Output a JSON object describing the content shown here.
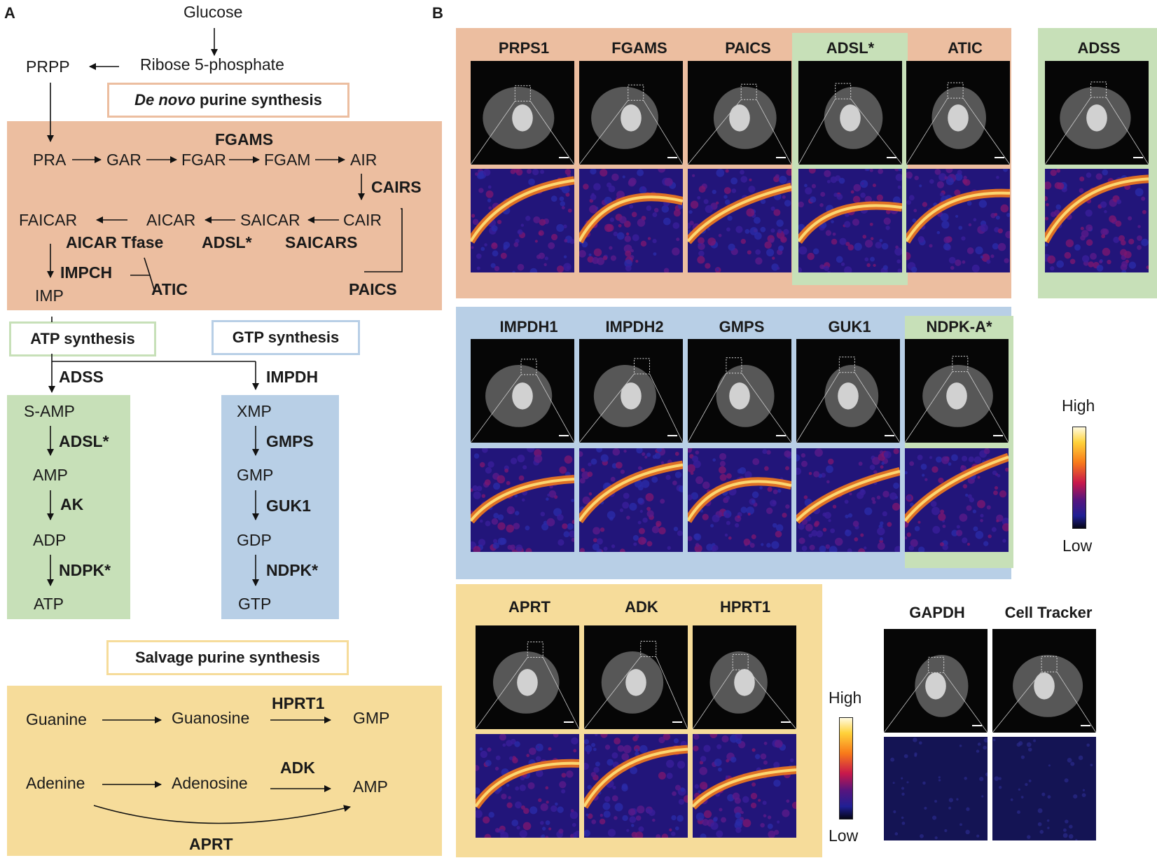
{
  "panel_a": {
    "letter": "A",
    "top": {
      "glucose": "Glucose",
      "ribose": "Ribose 5-phosphate",
      "prpp": "PRPP"
    },
    "denovo_title": {
      "italic": "De novo",
      "rest": " purine synthesis"
    },
    "denovo": {
      "fgams": "FGAMS",
      "row1": [
        "PRA",
        "GAR",
        "FGAR",
        "FGAM",
        "AIR"
      ],
      "cairs": "CAIRS",
      "row2": [
        "FAICAR",
        "AICAR",
        "SAICAR",
        "CAIR"
      ],
      "aicar_tfase": "AICAR Tfase",
      "adsl": "ADSL*",
      "saicars": "SAICARS",
      "impch": "IMPCH",
      "atic": "ATIC",
      "paics": "PAICS",
      "imp": "IMP"
    },
    "atp_title": "ATP synthesis",
    "gtp_title": "GTP synthesis",
    "adss": "ADSS",
    "impdh": "IMPDH",
    "atp_path": {
      "s_amp": "S-AMP",
      "adsl": "ADSL*",
      "amp": "AMP",
      "ak": "AK",
      "adp": "ADP",
      "ndpk": "NDPK*",
      "atp": "ATP"
    },
    "gtp_path": {
      "xmp": "XMP",
      "gmps": "GMPS",
      "gmp": "GMP",
      "guk1": "GUK1",
      "gdp": "GDP",
      "ndpk": "NDPK*",
      "gtp": "GTP"
    },
    "salvage_title": "Salvage purine synthesis",
    "salvage": {
      "guanine": "Guanine",
      "guanosine": "Guanosine",
      "hprt1": "HPRT1",
      "gmp": "GMP",
      "adenine": "Adenine",
      "adenosine": "Adenosine",
      "adk": "ADK",
      "amp": "AMP",
      "aprt": "APRT"
    }
  },
  "panel_b": {
    "letter": "B",
    "group1": [
      "PRPS1",
      "FGAMS",
      "PAICS",
      "ADSL*",
      "ATIC"
    ],
    "group1_side": "ADSS",
    "group2": [
      "IMPDH1",
      "IMPDH2",
      "GMPS",
      "GUK1",
      "NDPK-A*"
    ],
    "group3": [
      "APRT",
      "ADK",
      "HPRT1"
    ],
    "controls": [
      "GAPDH",
      "Cell Tracker"
    ],
    "colorbar1": {
      "high": "High",
      "low": "Low"
    },
    "colorbar2": {
      "high": "High",
      "low": "Low"
    }
  },
  "colors": {
    "denovo_bg": "#ecbea0",
    "atp_bg": "#c7e0b8",
    "gtp_bg": "#b8cfe6",
    "salvage_bg": "#f6dc9a"
  }
}
